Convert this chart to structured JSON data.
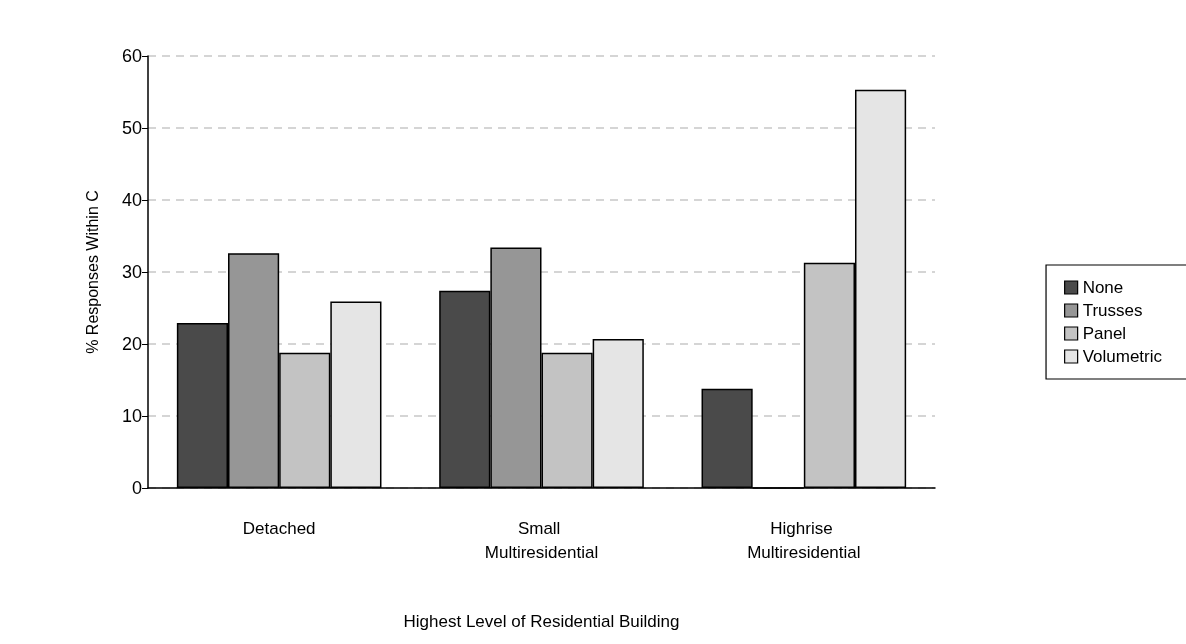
{
  "chart_data": {
    "type": "bar",
    "xlabel": "Highest Level of Residential Building",
    "ylabel": "% Responses Within C",
    "categories": [
      "Detached",
      "Small Multiresidential",
      "Highrise Multiresidential"
    ],
    "series": [
      {
        "name": "None",
        "color": "#4a4a4a",
        "values": [
          22.9,
          27.4,
          13.8
        ]
      },
      {
        "name": "Trusses",
        "color": "#969696",
        "values": [
          32.6,
          33.4,
          0
        ]
      },
      {
        "name": "Panel",
        "color": "#c3c3c3",
        "values": [
          18.8,
          18.8,
          31.3
        ]
      },
      {
        "name": "Volumetric",
        "color": "#e5e5e5",
        "values": [
          25.9,
          20.7,
          55.3
        ]
      }
    ],
    "ylim": [
      0,
      60
    ],
    "yticks": [
      0,
      10,
      20,
      30,
      40,
      50,
      60
    ],
    "grid": "y",
    "legend": "right"
  }
}
